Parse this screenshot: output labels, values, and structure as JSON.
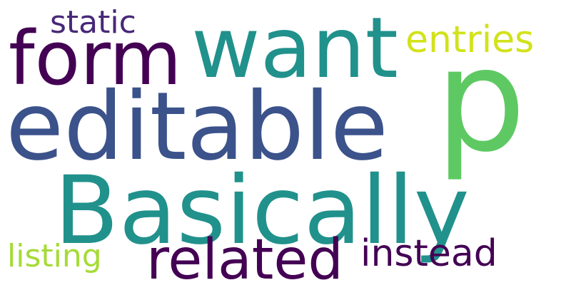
{
  "words": {
    "basically": {
      "text": "Basically",
      "color": "#21918c"
    },
    "editable": {
      "text": "editable",
      "color": "#3b528b"
    },
    "want": {
      "text": "want",
      "color": "#21918c"
    },
    "form": {
      "text": "form",
      "color": "#440154"
    },
    "p": {
      "text": "p",
      "color": "#5ec962"
    },
    "related": {
      "text": "related",
      "color": "#440154"
    },
    "instead": {
      "text": "instead",
      "color": "#440154"
    },
    "entries": {
      "text": "entries",
      "color": "#d2e21b"
    },
    "static": {
      "text": "static",
      "color": "#482878"
    },
    "listing": {
      "text": "listing",
      "color": "#a5db36"
    }
  }
}
